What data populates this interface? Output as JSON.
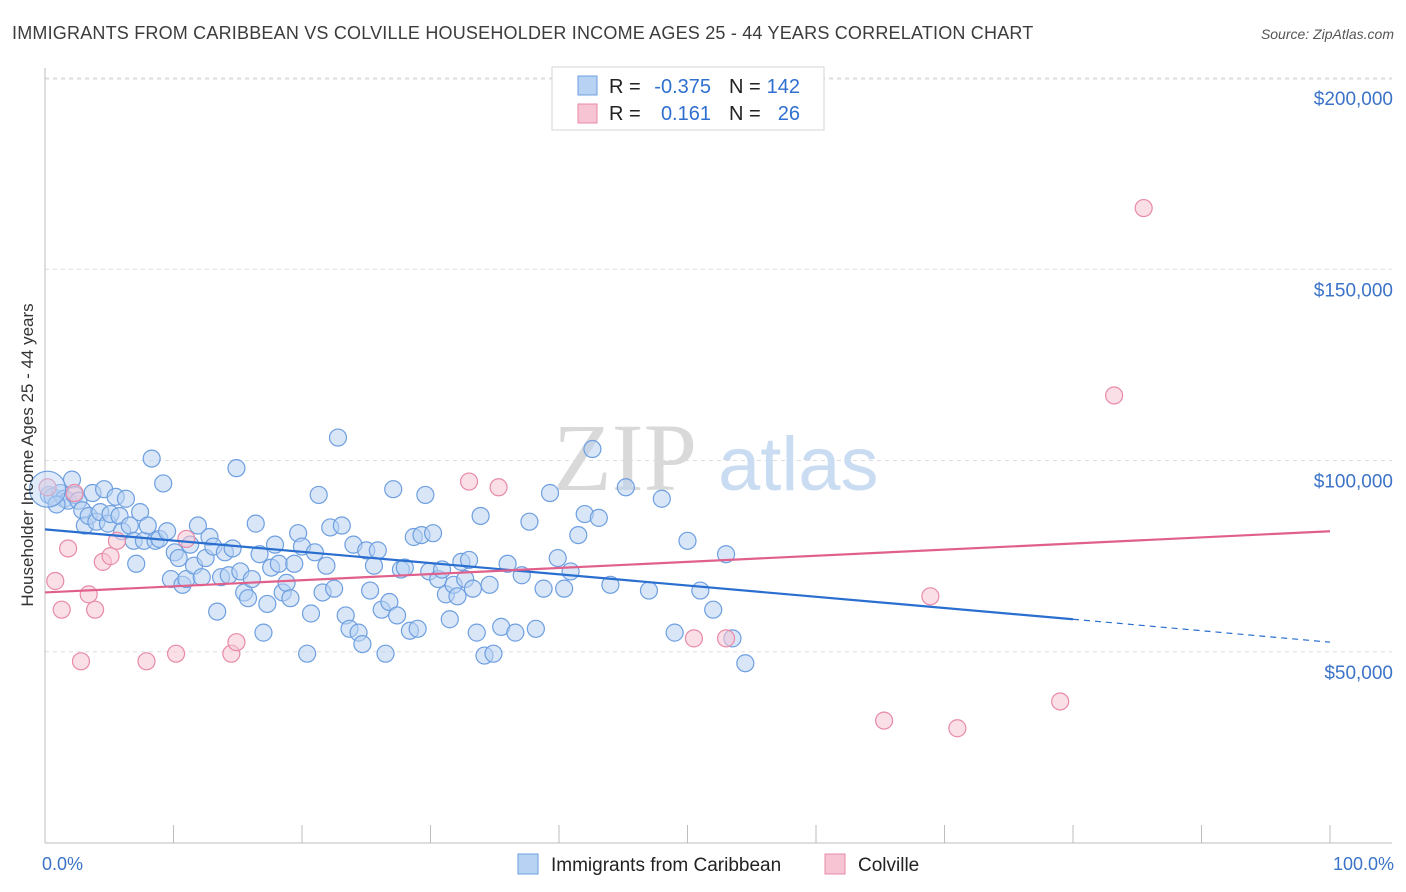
{
  "chart_data": {
    "type": "scatter",
    "title": "IMMIGRANTS FROM CARIBBEAN VS COLVILLE HOUSEHOLDER INCOME AGES 25 - 44 YEARS CORRELATION CHART",
    "source": "Source: ZipAtlas.com",
    "ylabel": "Householder Income Ages 25 - 44 years",
    "xlabel": "",
    "x_tick_labels": [
      "0.0%",
      "100.0%"
    ],
    "y_tick_labels": [
      "$50,000",
      "$100,000",
      "$150,000",
      "$200,000"
    ],
    "y_ticks": [
      50000,
      100000,
      150000,
      200000
    ],
    "xlim": [
      0,
      100
    ],
    "ylim": [
      0,
      215000
    ],
    "grid": true,
    "watermark": {
      "zip": "ZIP",
      "atlas": "atlas"
    },
    "legend": {
      "placement": "top-center",
      "rows": [
        {
          "r_label": "R =",
          "r_value": "-0.375",
          "n_label": "N =",
          "n_value": "142"
        },
        {
          "r_label": "R =",
          "r_value": "0.161",
          "n_label": "N =",
          "n_value": "26"
        }
      ]
    },
    "series": [
      {
        "name": "Immigrants from Caribbean",
        "color": "#6e9fe0",
        "fill": "#b8d2f3",
        "trend_color": "#2a6fd0",
        "trend": {
          "x0": 0,
          "y0": 82000,
          "x1": 80,
          "y1": 58500,
          "dash_to_x": 100,
          "dash_to_y": 52500
        },
        "points": [
          [
            0.3,
            91000
          ],
          [
            0.6,
            90500
          ],
          [
            1.2,
            91500
          ],
          [
            1.5,
            90000
          ],
          [
            1.8,
            89500
          ],
          [
            2.1,
            95000
          ],
          [
            2.3,
            91000
          ],
          [
            2.6,
            89500
          ],
          [
            2.9,
            87000
          ],
          [
            3.1,
            83000
          ],
          [
            3.4,
            85500
          ],
          [
            3.7,
            91500
          ],
          [
            4.0,
            84000
          ],
          [
            4.3,
            86500
          ],
          [
            4.6,
            92500
          ],
          [
            4.9,
            83500
          ],
          [
            5.1,
            86000
          ],
          [
            5.5,
            90500
          ],
          [
            5.8,
            85500
          ],
          [
            6.0,
            81500
          ],
          [
            6.3,
            90000
          ],
          [
            6.6,
            83000
          ],
          [
            6.9,
            79000
          ],
          [
            7.1,
            73000
          ],
          [
            7.4,
            86500
          ],
          [
            7.7,
            79000
          ],
          [
            8.0,
            83000
          ],
          [
            8.3,
            100500
          ],
          [
            8.6,
            79000
          ],
          [
            8.9,
            79500
          ],
          [
            9.2,
            94000
          ],
          [
            9.5,
            81500
          ],
          [
            9.8,
            69000
          ],
          [
            10.1,
            76000
          ],
          [
            10.4,
            74500
          ],
          [
            10.7,
            67500
          ],
          [
            11.0,
            69000
          ],
          [
            11.3,
            78000
          ],
          [
            11.6,
            72500
          ],
          [
            11.9,
            83000
          ],
          [
            12.2,
            69500
          ],
          [
            12.5,
            74500
          ],
          [
            12.8,
            80000
          ],
          [
            13.1,
            77500
          ],
          [
            13.4,
            60500
          ],
          [
            13.7,
            69500
          ],
          [
            14.0,
            76000
          ],
          [
            14.3,
            70000
          ],
          [
            14.6,
            77000
          ],
          [
            14.9,
            98000
          ],
          [
            15.2,
            71000
          ],
          [
            15.5,
            65500
          ],
          [
            15.8,
            64000
          ],
          [
            16.1,
            69000
          ],
          [
            16.4,
            83500
          ],
          [
            16.7,
            75500
          ],
          [
            17.0,
            55000
          ],
          [
            17.3,
            62500
          ],
          [
            17.6,
            72000
          ],
          [
            17.9,
            78000
          ],
          [
            18.2,
            73000
          ],
          [
            18.5,
            65500
          ],
          [
            18.8,
            68000
          ],
          [
            19.1,
            64000
          ],
          [
            19.4,
            73000
          ],
          [
            19.7,
            81000
          ],
          [
            20.0,
            77500
          ],
          [
            20.4,
            49500
          ],
          [
            20.7,
            60000
          ],
          [
            21.0,
            76000
          ],
          [
            21.3,
            91000
          ],
          [
            21.6,
            65500
          ],
          [
            21.9,
            72500
          ],
          [
            22.2,
            82500
          ],
          [
            22.5,
            66500
          ],
          [
            22.8,
            106000
          ],
          [
            23.1,
            83000
          ],
          [
            23.4,
            59500
          ],
          [
            23.7,
            56000
          ],
          [
            24.0,
            78000
          ],
          [
            24.4,
            55000
          ],
          [
            24.7,
            52000
          ],
          [
            25.0,
            76500
          ],
          [
            25.3,
            66000
          ],
          [
            25.6,
            72500
          ],
          [
            25.9,
            76500
          ],
          [
            26.2,
            61000
          ],
          [
            26.5,
            49500
          ],
          [
            26.8,
            63000
          ],
          [
            27.1,
            92500
          ],
          [
            27.4,
            59500
          ],
          [
            27.7,
            71500
          ],
          [
            28.0,
            72000
          ],
          [
            28.4,
            55500
          ],
          [
            28.7,
            80000
          ],
          [
            29.0,
            56000
          ],
          [
            29.3,
            80500
          ],
          [
            29.6,
            91000
          ],
          [
            29.9,
            71000
          ],
          [
            30.2,
            81000
          ],
          [
            30.6,
            69000
          ],
          [
            30.9,
            71500
          ],
          [
            31.2,
            65000
          ],
          [
            31.5,
            58500
          ],
          [
            31.8,
            67500
          ],
          [
            32.1,
            64500
          ],
          [
            32.4,
            73500
          ],
          [
            32.7,
            69000
          ],
          [
            33.0,
            74000
          ],
          [
            33.3,
            66500
          ],
          [
            33.6,
            55000
          ],
          [
            33.9,
            85500
          ],
          [
            34.2,
            49000
          ],
          [
            34.6,
            67500
          ],
          [
            34.9,
            49500
          ],
          [
            35.5,
            56500
          ],
          [
            36.0,
            73000
          ],
          [
            36.6,
            55000
          ],
          [
            37.1,
            70000
          ],
          [
            37.7,
            84000
          ],
          [
            38.2,
            56000
          ],
          [
            38.8,
            66500
          ],
          [
            39.3,
            91500
          ],
          [
            39.9,
            74500
          ],
          [
            40.4,
            66500
          ],
          [
            40.9,
            71000
          ],
          [
            41.5,
            80500
          ],
          [
            42.0,
            86000
          ],
          [
            42.6,
            103000
          ],
          [
            43.1,
            85000
          ],
          [
            44.0,
            67500
          ],
          [
            45.2,
            93000
          ],
          [
            47.0,
            66000
          ],
          [
            48.0,
            90000
          ],
          [
            49.0,
            55000
          ],
          [
            50.0,
            79000
          ],
          [
            51.0,
            66000
          ],
          [
            52.0,
            61000
          ],
          [
            53.0,
            75500
          ],
          [
            53.5,
            53500
          ],
          [
            54.5,
            47000
          ],
          [
            0.9,
            88500
          ]
        ]
      },
      {
        "name": "Colville",
        "color": "#e88aa8",
        "fill": "#f6c4d3",
        "trend_color": "#e0608b",
        "trend": {
          "x0": 0,
          "y0": 65500,
          "x1": 100,
          "y1": 81500
        },
        "points": [
          [
            0.2,
            93000
          ],
          [
            0.8,
            68500
          ],
          [
            1.3,
            61000
          ],
          [
            1.8,
            77000
          ],
          [
            2.3,
            91500
          ],
          [
            2.8,
            47500
          ],
          [
            3.4,
            65000
          ],
          [
            3.9,
            61000
          ],
          [
            4.5,
            73500
          ],
          [
            5.1,
            75000
          ],
          [
            5.6,
            79000
          ],
          [
            7.9,
            47500
          ],
          [
            10.2,
            49500
          ],
          [
            11.0,
            79500
          ],
          [
            14.5,
            49500
          ],
          [
            14.9,
            52500
          ],
          [
            33.0,
            94500
          ],
          [
            35.3,
            93000
          ],
          [
            50.5,
            53500
          ],
          [
            53.0,
            53500
          ],
          [
            65.3,
            32000
          ],
          [
            68.9,
            64500
          ],
          [
            71.0,
            30000
          ],
          [
            79.0,
            37000
          ],
          [
            83.2,
            117000
          ],
          [
            85.5,
            166000
          ]
        ]
      }
    ]
  }
}
